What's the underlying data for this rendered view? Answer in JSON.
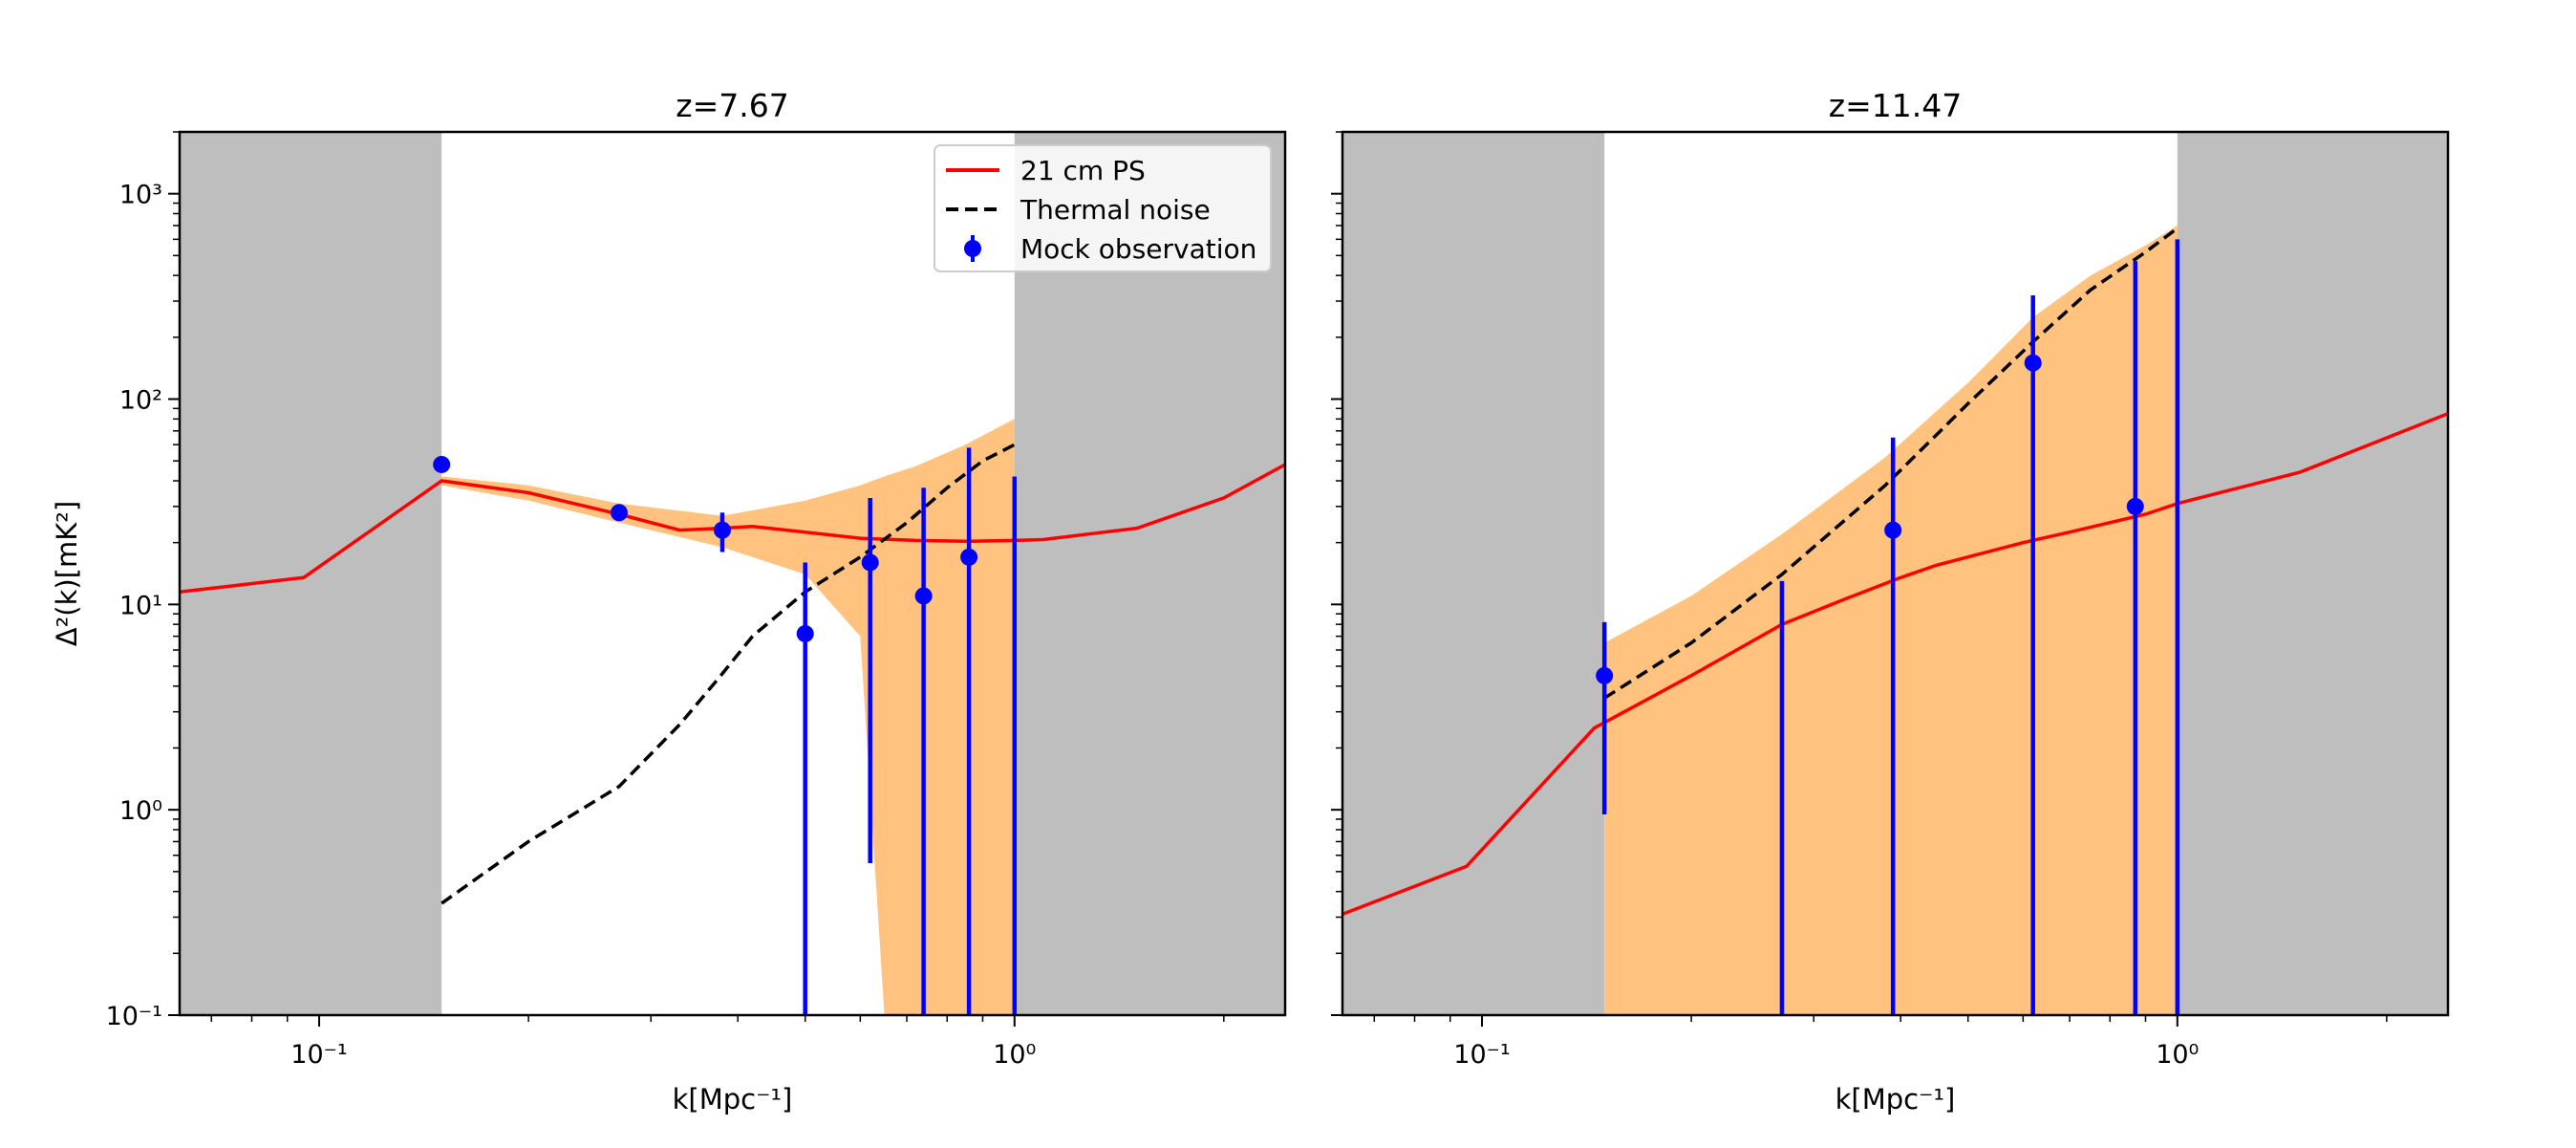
{
  "chart_data": [
    {
      "type": "line",
      "title": "z=7.67",
      "xlabel": "k[Mpc⁻¹]",
      "ylabel": "Δ²(k)[mK²]",
      "xscale": "log",
      "yscale": "log",
      "xlim": [
        0.063,
        2.45
      ],
      "ylim": [
        0.1,
        2000
      ],
      "x_tick_labels": [
        "10⁻¹",
        "10⁰"
      ],
      "y_tick_labels": [
        "10⁻¹",
        "10⁰",
        "10¹",
        "10²",
        "10³"
      ],
      "shaded_excluded_ranges": [
        [
          0.063,
          0.15
        ],
        [
          1.0,
          2.45
        ]
      ],
      "legend": {
        "position": "top-right",
        "entries": [
          {
            "label": "21 cm PS",
            "style": "line",
            "color": "#ff0000"
          },
          {
            "label": "Thermal noise",
            "style": "dashed",
            "color": "#000000"
          },
          {
            "label": "Mock observation",
            "style": "errorbar",
            "color": "#0000ff"
          }
        ]
      },
      "series": [
        {
          "name": "21 cm PS",
          "color": "#ff0000",
          "x": [
            0.063,
            0.095,
            0.15,
            0.2,
            0.27,
            0.33,
            0.38,
            0.42,
            0.5,
            0.6,
            0.72,
            0.85,
            1.0,
            1.1,
            1.5,
            2.0,
            2.45
          ],
          "y": [
            11.5,
            13.5,
            40,
            35,
            27.5,
            23,
            23.5,
            24,
            22.5,
            21,
            20.5,
            20.3,
            20.5,
            20.7,
            23.5,
            33,
            48
          ]
        },
        {
          "name": "Thermal noise",
          "color": "#000000",
          "dashed": true,
          "x": [
            0.15,
            0.2,
            0.27,
            0.33,
            0.38,
            0.42,
            0.5,
            0.6,
            0.7,
            0.8,
            0.9,
            1.0
          ],
          "y": [
            0.35,
            0.7,
            1.3,
            2.6,
            4.6,
            7,
            11.5,
            17,
            25,
            37,
            50,
            60
          ]
        },
        {
          "name": "Mock observation",
          "color": "#0000ff",
          "kind": "errorbar",
          "x": [
            0.15,
            0.27,
            0.38,
            0.5,
            0.62,
            0.74,
            0.86,
            1.0
          ],
          "y": [
            48,
            28,
            23,
            7.2,
            16,
            11,
            17,
            null
          ],
          "y_low": [
            null,
            null,
            18,
            0.1,
            0.55,
            0.1,
            0.1,
            0.1
          ],
          "y_high": [
            null,
            null,
            28,
            16,
            33,
            37,
            58,
            42
          ]
        }
      ],
      "uncertainty_band": {
        "color": "#ffc27f",
        "x": [
          0.15,
          0.2,
          0.27,
          0.38,
          0.5,
          0.6,
          0.65,
          0.72,
          0.85,
          1.0
        ],
        "upper": [
          42,
          38,
          31,
          27,
          32,
          38,
          42,
          47,
          60,
          80
        ],
        "lower": [
          38,
          32,
          25,
          19,
          14,
          7,
          0.1,
          0.1,
          0.1,
          0.1
        ]
      }
    },
    {
      "type": "line",
      "title": "z=11.47",
      "xlabel": "k[Mpc⁻¹]",
      "ylabel": "",
      "xscale": "log",
      "yscale": "log",
      "xlim": [
        0.063,
        2.45
      ],
      "ylim": [
        0.1,
        2000
      ],
      "x_tick_labels": [
        "10⁻¹",
        "10⁰"
      ],
      "shaded_excluded_ranges": [
        [
          0.063,
          0.15
        ],
        [
          1.0,
          2.45
        ]
      ],
      "series": [
        {
          "name": "21 cm PS",
          "color": "#ff0000",
          "x": [
            0.063,
            0.095,
            0.145,
            0.2,
            0.27,
            0.33,
            0.4,
            0.45,
            0.6,
            0.7,
            0.9,
            1.0,
            1.5,
            2.45
          ],
          "y": [
            0.31,
            0.53,
            2.5,
            4.5,
            8,
            10.5,
            13.5,
            15.5,
            20,
            22.5,
            27.5,
            31,
            44,
            85
          ]
        },
        {
          "name": "Thermal noise",
          "color": "#000000",
          "dashed": true,
          "x": [
            0.15,
            0.2,
            0.27,
            0.38,
            0.5,
            0.62,
            0.75,
            0.9,
            1.0
          ],
          "y": [
            3.5,
            6.5,
            14,
            38,
            95,
            190,
            340,
            520,
            680
          ]
        },
        {
          "name": "Mock observation",
          "color": "#0000ff",
          "kind": "errorbar",
          "x": [
            0.15,
            0.27,
            0.39,
            0.62,
            0.87,
            1.0
          ],
          "y": [
            4.5,
            null,
            23,
            150,
            30,
            null
          ],
          "y_low": [
            0.95,
            0.1,
            0.1,
            0.1,
            0.1,
            0.1
          ],
          "y_high": [
            8.2,
            13,
            65,
            320,
            470,
            600
          ]
        }
      ],
      "uncertainty_band": {
        "color": "#ffc27f",
        "x": [
          0.15,
          0.2,
          0.27,
          0.38,
          0.5,
          0.62,
          0.75,
          0.9,
          1.0
        ],
        "upper": [
          6.5,
          11,
          22,
          52,
          120,
          250,
          400,
          560,
          700
        ],
        "lower": [
          0.1,
          0.1,
          0.1,
          0.1,
          0.1,
          0.1,
          0.1,
          0.1,
          0.1
        ]
      }
    }
  ]
}
